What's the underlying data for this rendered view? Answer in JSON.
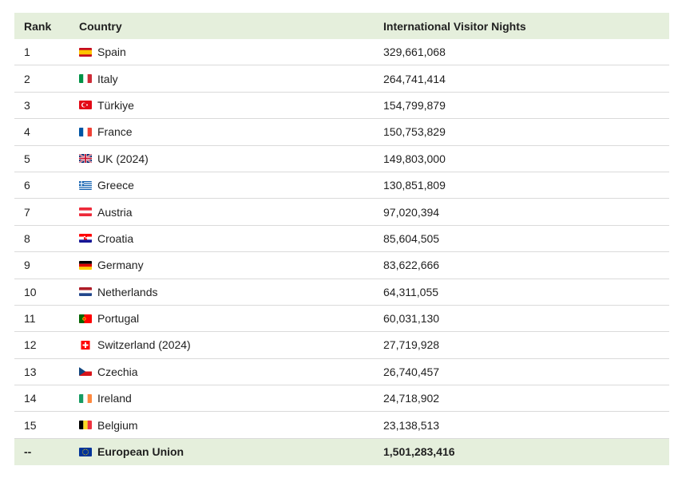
{
  "headers": {
    "rank": "Rank",
    "country": "Country",
    "nights": "International Visitor Nights"
  },
  "rows": [
    {
      "rank": "1",
      "country": "Spain",
      "nights": "329,661,068",
      "flag": "spain-flag-icon"
    },
    {
      "rank": "2",
      "country": "Italy",
      "nights": "264,741,414",
      "flag": "italy-flag-icon"
    },
    {
      "rank": "3",
      "country": "Türkiye",
      "nights": "154,799,879",
      "flag": "turkiye-flag-icon"
    },
    {
      "rank": "4",
      "country": "France",
      "nights": "150,753,829",
      "flag": "france-flag-icon"
    },
    {
      "rank": "5",
      "country": "UK (2024)",
      "nights": "149,803,000",
      "flag": "uk-flag-icon"
    },
    {
      "rank": "6",
      "country": "Greece",
      "nights": "130,851,809",
      "flag": "greece-flag-icon"
    },
    {
      "rank": "7",
      "country": "Austria",
      "nights": "97,020,394",
      "flag": "austria-flag-icon"
    },
    {
      "rank": "8",
      "country": "Croatia",
      "nights": "85,604,505",
      "flag": "croatia-flag-icon"
    },
    {
      "rank": "9",
      "country": "Germany",
      "nights": "83,622,666",
      "flag": "germany-flag-icon"
    },
    {
      "rank": "10",
      "country": "Netherlands",
      "nights": "64,311,055",
      "flag": "netherlands-flag-icon"
    },
    {
      "rank": "11",
      "country": "Portugal",
      "nights": "60,031,130",
      "flag": "portugal-flag-icon"
    },
    {
      "rank": "12",
      "country": "Switzerland (2024)",
      "nights": "27,719,928",
      "flag": "switzerland-flag-icon"
    },
    {
      "rank": "13",
      "country": "Czechia",
      "nights": "26,740,457",
      "flag": "czechia-flag-icon"
    },
    {
      "rank": "14",
      "country": "Ireland",
      "nights": "24,718,902",
      "flag": "ireland-flag-icon"
    },
    {
      "rank": "15",
      "country": "Belgium",
      "nights": "23,138,513",
      "flag": "belgium-flag-icon"
    }
  ],
  "total": {
    "rank": "--",
    "country": "European Union",
    "nights": "1,501,283,416",
    "flag": "eu-flag-icon"
  },
  "colors": {
    "header_bg": "#e5efdc",
    "border": "#dadada"
  }
}
